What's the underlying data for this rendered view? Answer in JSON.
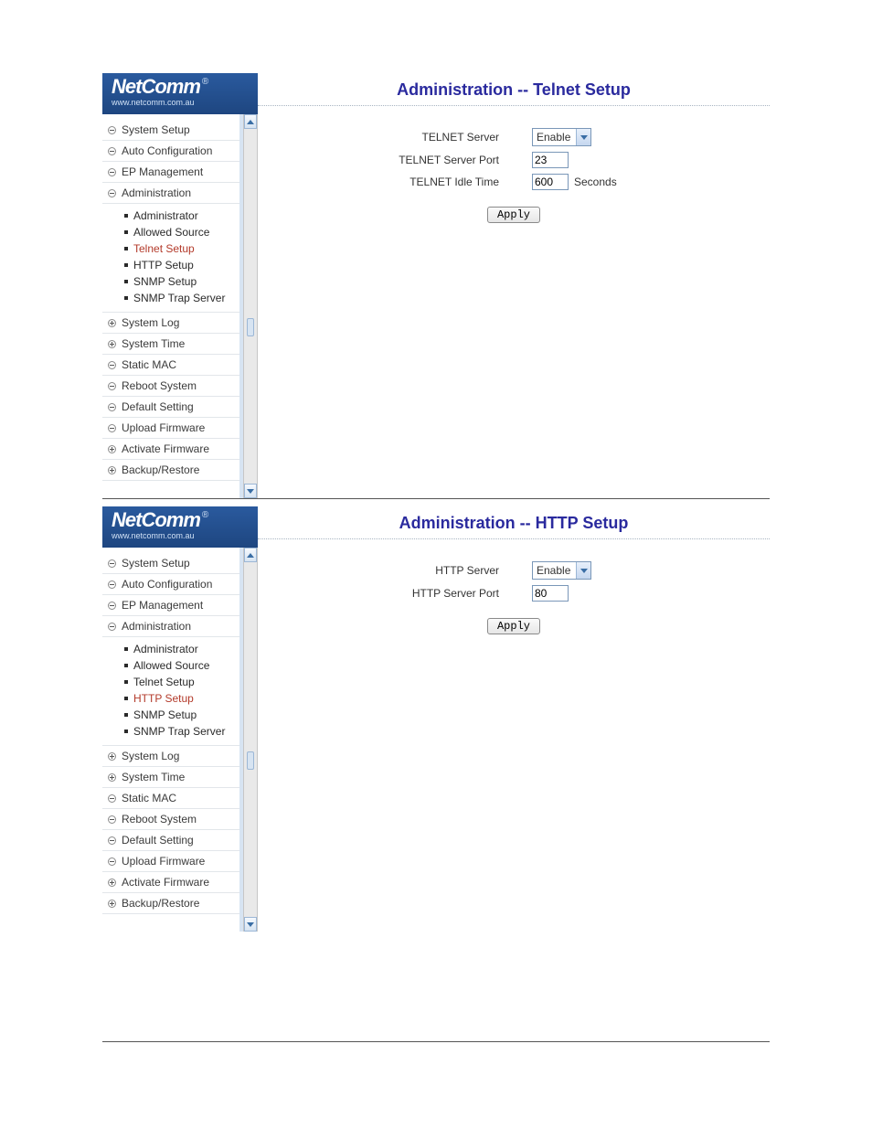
{
  "brand": {
    "name": "NetComm",
    "url": "www.netcomm.com.au",
    "registered_mark": "®"
  },
  "colors": {
    "title": "#2a2a9e",
    "active_sub": "#b33a2a",
    "logo_bg_top": "#2a5a9e",
    "logo_bg_bottom": "#1e4680",
    "border_input": "#7a97b8",
    "sidebar_divider": "#e2e6ea",
    "dropdown_arrow": "#3a6ea5"
  },
  "panels": [
    {
      "title": "Administration -- Telnet Setup",
      "active_sub": "Telnet Setup",
      "scroll_mark_pct": 53,
      "form": {
        "rows": [
          {
            "label": "TELNET Server",
            "type": "select",
            "value": "Enable"
          },
          {
            "label": "TELNET Server Port",
            "type": "text",
            "value": "23"
          },
          {
            "label": "TELNET Idle Time",
            "type": "text",
            "value": "600",
            "suffix": "Seconds"
          }
        ],
        "apply_label": "Apply"
      }
    },
    {
      "title": "Administration -- HTTP Setup",
      "active_sub": "HTTP Setup",
      "scroll_mark_pct": 53,
      "form": {
        "rows": [
          {
            "label": "HTTP Server",
            "type": "select",
            "value": "Enable"
          },
          {
            "label": "HTTP Server Port",
            "type": "text",
            "value": "80"
          }
        ],
        "apply_label": "Apply"
      }
    }
  ],
  "sidebar": {
    "items": [
      {
        "label": "System Setup",
        "icon": "minus"
      },
      {
        "label": "Auto Configuration",
        "icon": "minus"
      },
      {
        "label": "EP Management",
        "icon": "minus"
      },
      {
        "label": "Administration",
        "icon": "minus",
        "children": [
          {
            "label": "Administrator"
          },
          {
            "label": "Allowed Source"
          },
          {
            "label": "Telnet Setup"
          },
          {
            "label": "HTTP Setup"
          },
          {
            "label": "SNMP Setup"
          },
          {
            "label": "SNMP Trap Server"
          }
        ]
      },
      {
        "label": "System Log",
        "icon": "plus"
      },
      {
        "label": "System Time",
        "icon": "plus"
      },
      {
        "label": "Static MAC",
        "icon": "minus"
      },
      {
        "label": "Reboot System",
        "icon": "minus"
      },
      {
        "label": "Default Setting",
        "icon": "minus"
      },
      {
        "label": "Upload Firmware",
        "icon": "minus"
      },
      {
        "label": "Activate Firmware",
        "icon": "plus"
      },
      {
        "label": "Backup/Restore",
        "icon": "plus"
      }
    ]
  }
}
